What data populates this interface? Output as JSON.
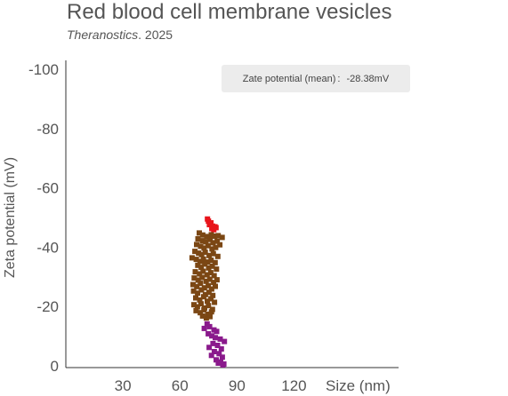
{
  "chart_data": {
    "type": "scatter",
    "title": "Red blood cell membrane vesicles",
    "subtitle_journal": "Theranostics",
    "subtitle_year": ". 2025",
    "xlabel": "Size (nm)",
    "ylabel": "Zeta potential (mV)",
    "x_ticks": [
      30,
      60,
      90,
      120
    ],
    "x_tick_labels": [
      "30",
      "60",
      "90",
      "120"
    ],
    "y_ticks": [
      0,
      -20,
      -40,
      -60,
      -80,
      -100
    ],
    "y_tick_labels": [
      "0",
      "-20",
      "-40",
      "-60",
      "-80",
      "-100"
    ],
    "xlim": [
      0,
      175
    ],
    "ylim": [
      0,
      -100
    ],
    "y_axis_reversed": true,
    "grid": false,
    "annotation": {
      "label": "Zate potential (mean)",
      "separator": ":",
      "value": "-28.38mV"
    },
    "series": [
      {
        "color": "#e8141b",
        "points": [
          [
            74.5,
            -49.5
          ],
          [
            75.0,
            -48.8
          ],
          [
            76.3,
            -48.2
          ],
          [
            75.5,
            -47.6
          ],
          [
            77.2,
            -47.1
          ],
          [
            78.4,
            -46.9
          ],
          [
            76.8,
            -46.3
          ],
          [
            79.0,
            -46.6
          ],
          [
            77.8,
            -45.9
          ]
        ]
      },
      {
        "color": "#7b4714",
        "points": [
          [
            70.2,
            -44.8
          ],
          [
            72.0,
            -44.1
          ],
          [
            74.1,
            -43.6
          ],
          [
            76.5,
            -44.2
          ],
          [
            78.3,
            -43.7
          ],
          [
            80.1,
            -43.9
          ],
          [
            82.2,
            -43.3
          ],
          [
            69.5,
            -42.8
          ],
          [
            71.8,
            -42.2
          ],
          [
            73.6,
            -41.8
          ],
          [
            75.9,
            -42.6
          ],
          [
            77.4,
            -41.5
          ],
          [
            79.6,
            -42.0
          ],
          [
            68.8,
            -40.9
          ],
          [
            70.9,
            -40.3
          ],
          [
            72.7,
            -39.7
          ],
          [
            74.8,
            -40.5
          ],
          [
            76.9,
            -39.4
          ],
          [
            78.8,
            -39.9
          ],
          [
            81.0,
            -40.8
          ],
          [
            67.9,
            -38.6
          ],
          [
            69.8,
            -38.0
          ],
          [
            71.4,
            -37.5
          ],
          [
            73.3,
            -38.3
          ],
          [
            75.4,
            -37.2
          ],
          [
            77.6,
            -37.8
          ],
          [
            79.9,
            -36.9
          ],
          [
            66.4,
            -36.4
          ],
          [
            68.6,
            -35.9
          ],
          [
            70.6,
            -35.2
          ],
          [
            72.4,
            -36.0
          ],
          [
            74.6,
            -35.0
          ],
          [
            76.4,
            -35.6
          ],
          [
            78.5,
            -34.8
          ],
          [
            69.4,
            -33.9
          ],
          [
            71.2,
            -33.2
          ],
          [
            73.1,
            -34.3
          ],
          [
            75.1,
            -33.0
          ],
          [
            77.0,
            -33.6
          ],
          [
            79.2,
            -32.6
          ],
          [
            68.1,
            -31.7
          ],
          [
            70.3,
            -31.0
          ],
          [
            72.2,
            -31.9
          ],
          [
            74.3,
            -30.7
          ],
          [
            76.2,
            -31.4
          ],
          [
            78.0,
            -30.4
          ],
          [
            67.5,
            -29.6
          ],
          [
            69.6,
            -28.9
          ],
          [
            71.7,
            -29.8
          ],
          [
            73.8,
            -28.5
          ],
          [
            75.7,
            -29.2
          ],
          [
            77.7,
            -28.1
          ],
          [
            79.5,
            -29.0
          ],
          [
            66.9,
            -27.4
          ],
          [
            68.9,
            -26.7
          ],
          [
            70.8,
            -27.8
          ],
          [
            72.9,
            -26.3
          ],
          [
            74.9,
            -27.0
          ],
          [
            76.7,
            -25.9
          ],
          [
            78.6,
            -26.8
          ],
          [
            67.2,
            -25.2
          ],
          [
            69.3,
            -24.5
          ],
          [
            71.3,
            -25.6
          ],
          [
            73.4,
            -24.0
          ],
          [
            75.3,
            -24.8
          ],
          [
            77.3,
            -23.7
          ],
          [
            68.3,
            -22.9
          ],
          [
            70.4,
            -22.2
          ],
          [
            72.5,
            -23.3
          ],
          [
            74.4,
            -21.8
          ],
          [
            76.3,
            -22.6
          ],
          [
            78.2,
            -21.4
          ],
          [
            67.4,
            -20.6
          ],
          [
            69.2,
            -19.9
          ],
          [
            71.1,
            -20.9
          ],
          [
            73.0,
            -19.5
          ],
          [
            75.0,
            -20.3
          ],
          [
            77.1,
            -19.0
          ],
          [
            68.5,
            -18.6
          ],
          [
            70.7,
            -17.9
          ],
          [
            72.6,
            -18.9
          ],
          [
            74.7,
            -17.4
          ],
          [
            76.6,
            -18.2
          ],
          [
            71.9,
            -16.8
          ],
          [
            73.9,
            -16.1
          ],
          [
            75.8,
            -16.6
          ]
        ]
      },
      {
        "color": "#8a1a8c",
        "points": [
          [
            74.3,
            -14.1
          ],
          [
            72.8,
            -12.6
          ],
          [
            75.6,
            -13.2
          ],
          [
            77.9,
            -12.1
          ],
          [
            79.3,
            -11.6
          ],
          [
            74.9,
            -10.8
          ],
          [
            76.8,
            -10.1
          ],
          [
            78.6,
            -9.5
          ],
          [
            81.2,
            -9.0
          ],
          [
            83.4,
            -8.2
          ],
          [
            77.4,
            -7.5
          ],
          [
            79.8,
            -6.9
          ],
          [
            75.4,
            -6.2
          ],
          [
            81.8,
            -5.7
          ],
          [
            78.1,
            -4.8
          ],
          [
            80.6,
            -4.1
          ],
          [
            76.6,
            -3.5
          ],
          [
            82.3,
            -2.9
          ],
          [
            79.1,
            -2.0
          ],
          [
            81.4,
            -1.3
          ],
          [
            83.1,
            -0.6
          ],
          [
            80.2,
            -0.9
          ],
          [
            82.6,
            -0.3
          ]
        ]
      }
    ]
  }
}
